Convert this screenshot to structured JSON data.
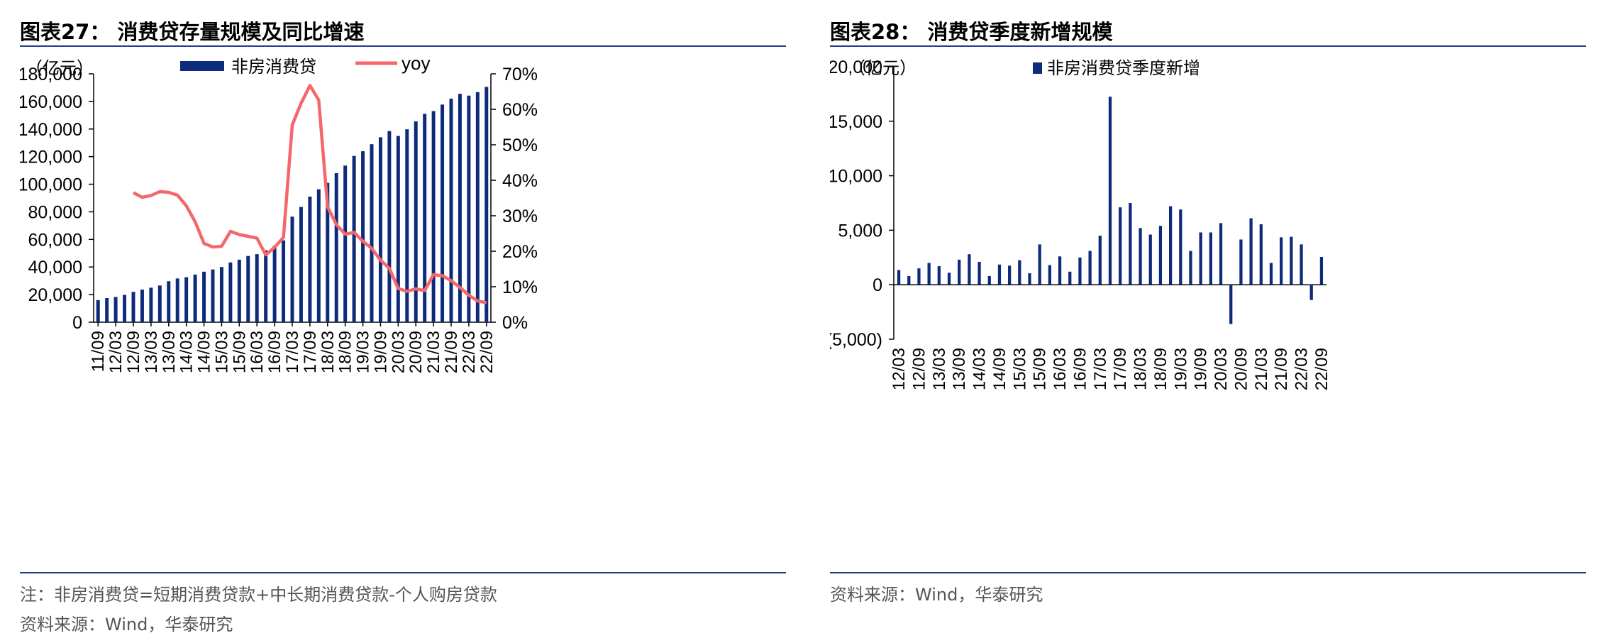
{
  "left_panel": {
    "title": "图表27：  消费贷存量规模及同比增速",
    "unit": "（亿元）",
    "note1": "注：非房消费贷=短期消费贷款+中长期消费贷款-个人购房贷款",
    "note2": "资料来源：Wind，华泰研究"
  },
  "right_panel": {
    "title": "图表28：  消费贷季度新增规模",
    "unit": "（亿元）",
    "note1": "资料来源：Wind，华泰研究"
  },
  "colors": {
    "bar": "#0e2a7a",
    "line": "#f4676b",
    "rule": "#1f3f8a"
  },
  "chart_data": [
    {
      "type": "bar",
      "combo": "bar+line, dual y-axis",
      "title": "",
      "x": [
        "11/09",
        "11/12",
        "12/03",
        "12/06",
        "12/09",
        "12/12",
        "13/03",
        "13/06",
        "13/09",
        "13/12",
        "14/03",
        "14/06",
        "14/09",
        "14/12",
        "15/03",
        "15/06",
        "15/09",
        "15/12",
        "16/03",
        "16/06",
        "16/09",
        "16/12",
        "17/03",
        "17/06",
        "17/09",
        "17/12",
        "18/03",
        "18/06",
        "18/09",
        "18/12",
        "19/03",
        "19/06",
        "19/09",
        "19/12",
        "20/03",
        "20/06",
        "20/09",
        "20/12",
        "21/03",
        "21/06",
        "21/09",
        "21/12",
        "22/03",
        "22/06",
        "22/09"
      ],
      "x_tick_labels": [
        "11/09",
        "12/03",
        "12/09",
        "13/03",
        "13/09",
        "14/03",
        "14/09",
        "15/03",
        "15/09",
        "16/03",
        "16/09",
        "17/03",
        "17/09",
        "18/03",
        "18/09",
        "19/03",
        "19/09",
        "20/03",
        "20/09",
        "21/03",
        "21/09",
        "22/03",
        "22/09"
      ],
      "series": [
        {
          "name": "非房消费贷",
          "type": "bar",
          "axis": "left",
          "values": [
            16000,
            17500,
            18300,
            19800,
            22000,
            23600,
            25000,
            26600,
            29700,
            31700,
            32600,
            34500,
            36600,
            38200,
            40000,
            43300,
            45300,
            48000,
            49300,
            52100,
            55400,
            59300,
            76500,
            83500,
            91000,
            96300,
            101000,
            108000,
            113500,
            120500,
            123900,
            129000,
            134000,
            138500,
            135000,
            139800,
            145500,
            151000,
            153000,
            157700,
            162000,
            165500,
            164200,
            166700,
            170500
          ]
        },
        {
          "name": "yoy",
          "type": "line",
          "axis": "right",
          "values": [
            null,
            null,
            null,
            null,
            0.365,
            0.352,
            0.357,
            0.368,
            0.366,
            0.358,
            0.328,
            0.283,
            0.222,
            0.212,
            0.214,
            0.256,
            0.247,
            0.242,
            0.237,
            0.19,
            0.211,
            0.239,
            0.556,
            0.617,
            0.667,
            0.626,
            0.325,
            0.275,
            0.248,
            0.253,
            0.228,
            0.208,
            0.175,
            0.152,
            0.095,
            0.087,
            0.094,
            0.089,
            0.134,
            0.131,
            0.117,
            0.098,
            0.076,
            0.06,
            0.055
          ]
        }
      ],
      "y_left": {
        "range": [
          0,
          180000
        ],
        "ticks": [
          "0",
          "20,000",
          "40,000",
          "60,000",
          "80,000",
          "100,000",
          "120,000",
          "140,000",
          "160,000",
          "180,000"
        ]
      },
      "y_right": {
        "range": [
          0,
          0.7
        ],
        "ticks": [
          "0%",
          "10%",
          "20%",
          "30%",
          "40%",
          "50%",
          "60%",
          "70%"
        ]
      },
      "legend": "top",
      "grid": false
    },
    {
      "type": "bar",
      "title": "",
      "x": [
        "12/03",
        "12/06",
        "12/09",
        "12/12",
        "13/03",
        "13/06",
        "13/09",
        "13/12",
        "14/03",
        "14/06",
        "14/09",
        "14/12",
        "15/03",
        "15/06",
        "15/09",
        "15/12",
        "16/03",
        "16/06",
        "16/09",
        "16/12",
        "17/03",
        "17/06",
        "17/09",
        "17/12",
        "18/03",
        "18/06",
        "18/09",
        "18/12",
        "19/03",
        "19/06",
        "19/09",
        "19/12",
        "20/03",
        "20/06",
        "20/09",
        "20/12",
        "21/03",
        "21/06",
        "21/09",
        "21/12",
        "22/03",
        "22/06",
        "22/09"
      ],
      "x_tick_labels": [
        "12/03",
        "12/09",
        "13/03",
        "13/09",
        "14/03",
        "14/09",
        "15/03",
        "15/09",
        "16/03",
        "16/09",
        "17/03",
        "17/09",
        "18/03",
        "18/09",
        "19/03",
        "19/09",
        "20/03",
        "20/09",
        "21/03",
        "21/09",
        "22/03",
        "22/09"
      ],
      "series": [
        {
          "name": "非房消费贷季度新增",
          "values": [
            1350,
            800,
            1500,
            2000,
            1700,
            1100,
            2300,
            2800,
            2100,
            800,
            1850,
            1750,
            2250,
            1050,
            3700,
            1800,
            2600,
            1200,
            2500,
            3100,
            4500,
            17250,
            7100,
            7500,
            5200,
            4600,
            5400,
            7200,
            6900,
            3100,
            4800,
            4800,
            5650,
            -3600,
            4150,
            6100,
            5550,
            2000,
            4350,
            4400,
            3700,
            -1400,
            2550
          ]
        }
      ],
      "y": {
        "range": [
          -5000,
          20000
        ],
        "ticks": [
          "(5,000)",
          "0",
          "5,000",
          "10,000",
          "15,000",
          "20,000"
        ]
      },
      "legend": "top",
      "grid": false
    }
  ]
}
